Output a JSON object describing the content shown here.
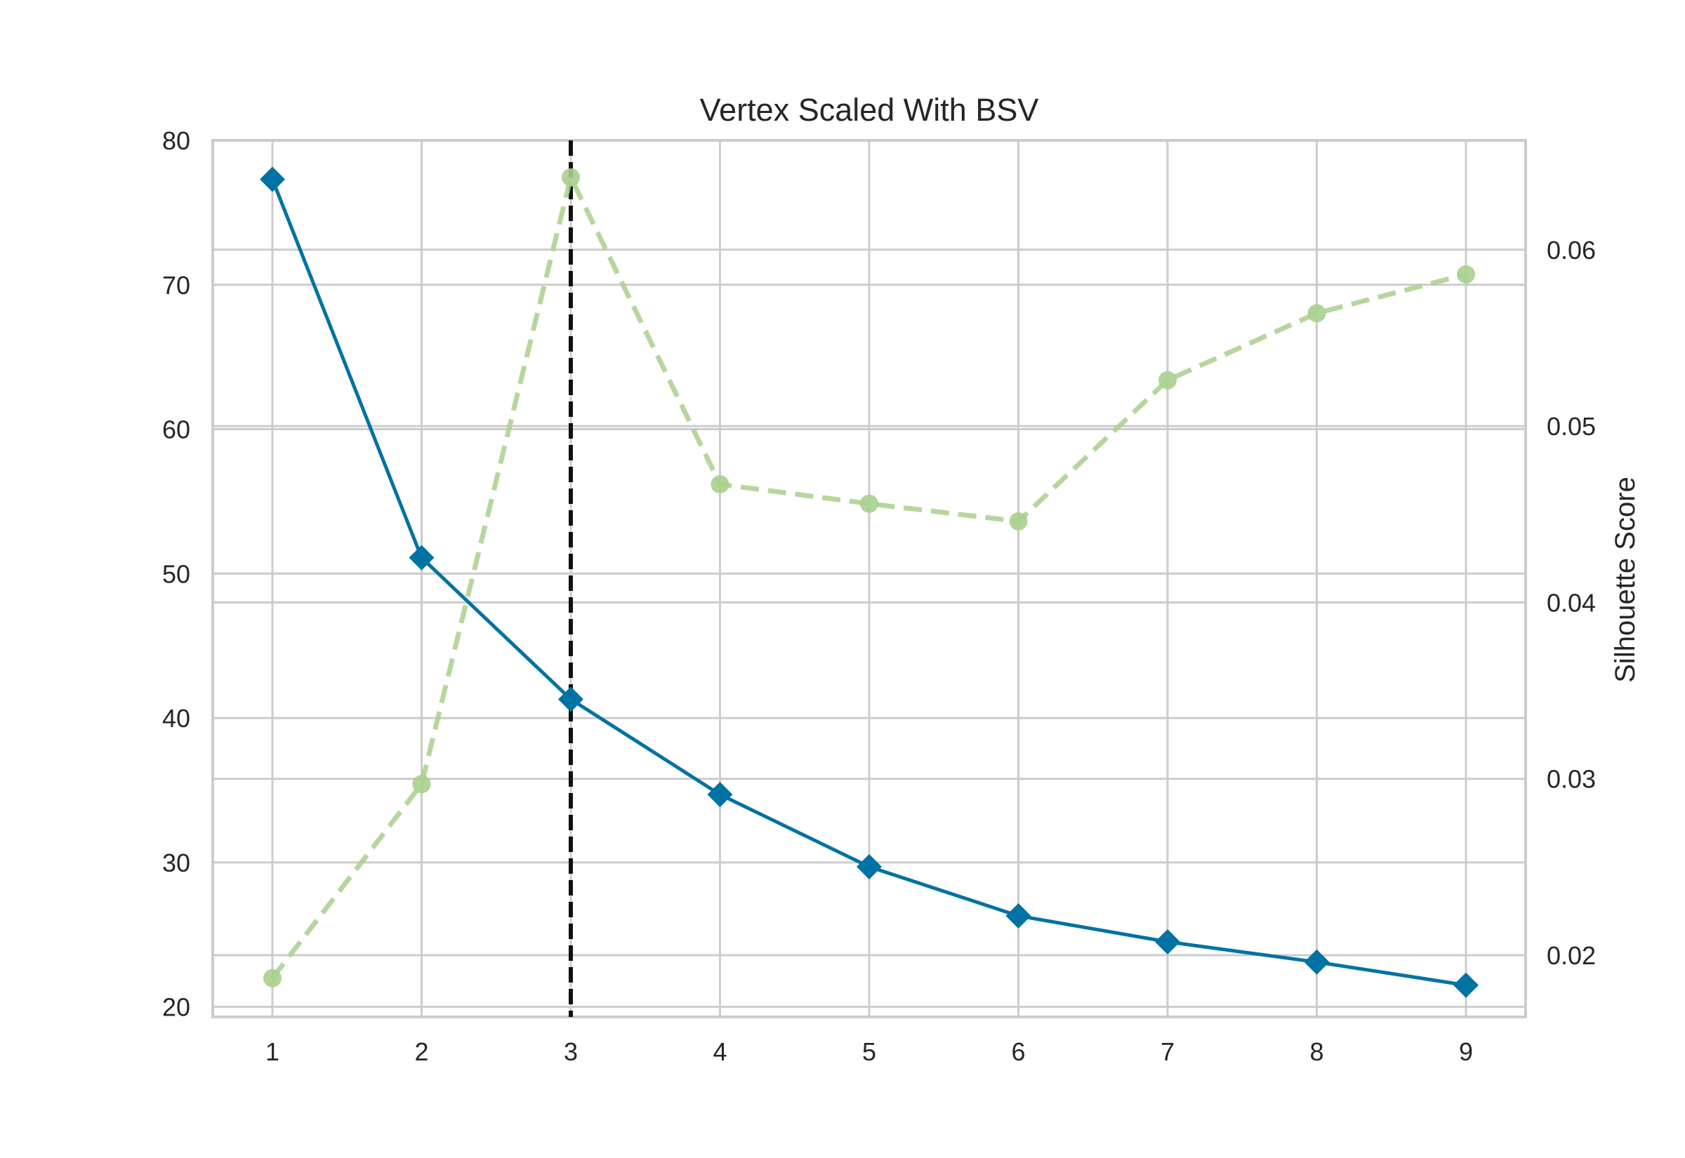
{
  "chart_data": {
    "type": "line",
    "title": "Vertex Scaled With BSV",
    "xlabel": "",
    "ylabel_left": "",
    "ylabel_right": "Silhouette Score",
    "x": [
      1,
      2,
      3,
      4,
      5,
      6,
      7,
      8,
      9
    ],
    "xlim": [
      0.6,
      9.4
    ],
    "ylim_left": [
      19.3,
      80.0
    ],
    "ylim_right": [
      0.0165,
      0.0662
    ],
    "x_ticks": [
      "1",
      "2",
      "3",
      "4",
      "5",
      "6",
      "7",
      "8",
      "9"
    ],
    "y_ticks_left": [
      "20",
      "30",
      "40",
      "50",
      "60",
      "70",
      "80"
    ],
    "y_ticks_right": [
      "0.02",
      "0.03",
      "0.04",
      "0.05",
      "0.06"
    ],
    "grid": true,
    "series": [
      {
        "axis": "left",
        "style": "solid",
        "marker": "diamond",
        "color": "#0072a3",
        "values": [
          77.3,
          51.1,
          41.3,
          34.7,
          29.7,
          26.3,
          24.5,
          23.1,
          21.5
        ]
      },
      {
        "axis": "right",
        "style": "dashed",
        "marker": "circle",
        "color": "#a8d08d",
        "values": [
          0.0187,
          0.0297,
          0.0641,
          0.0467,
          0.0456,
          0.0446,
          0.0526,
          0.0564,
          0.0586
        ]
      }
    ],
    "elbow": {
      "x": 3,
      "style": "dashed",
      "color": "#111111"
    },
    "colors": {
      "grid": "#cccccc",
      "frame": "#cccccc",
      "text": "#262626"
    }
  }
}
